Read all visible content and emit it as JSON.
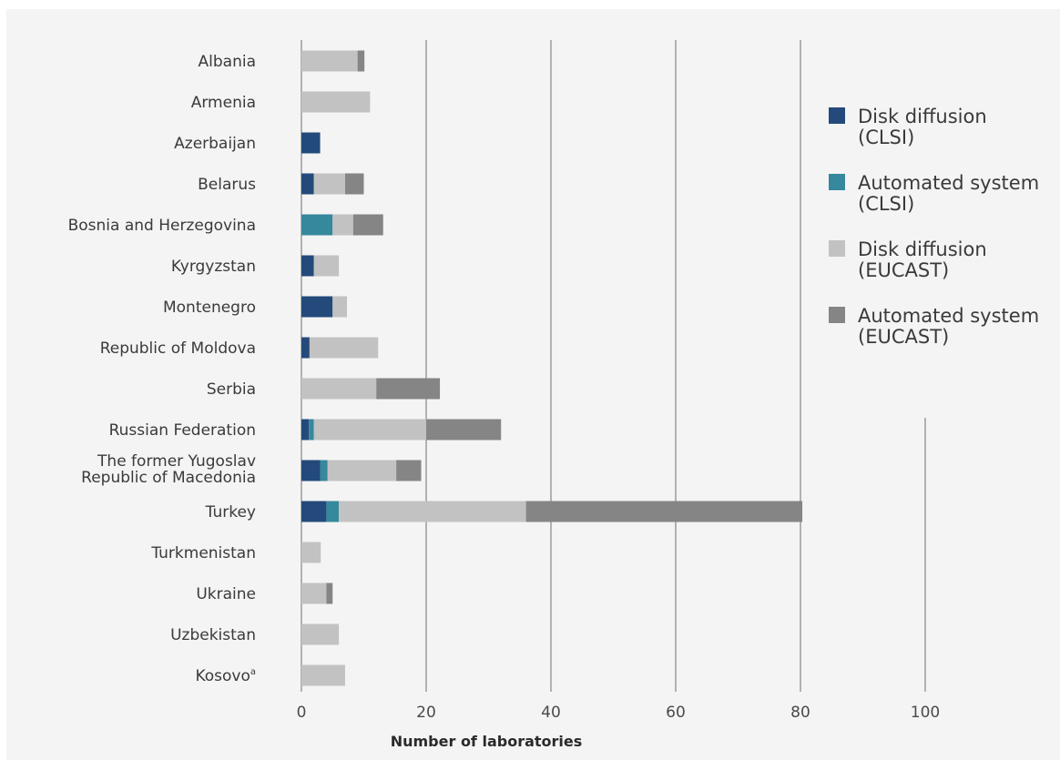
{
  "chart_data": {
    "type": "bar",
    "orientation": "horizontal",
    "stacked": true,
    "categories": [
      [
        "Albania"
      ],
      [
        "Armenia"
      ],
      [
        "Azerbaijan"
      ],
      [
        "Belarus"
      ],
      [
        "Bosnia and Herzegovina"
      ],
      [
        "Kyrgyzstan"
      ],
      [
        "Montenegro"
      ],
      [
        "Republic of Moldova"
      ],
      [
        "Serbia"
      ],
      [
        "Russian Federation"
      ],
      [
        "The former Yugoslav",
        "Republic of Macedonia"
      ],
      [
        "Turkey"
      ],
      [
        "Turkmenistan"
      ],
      [
        "Ukraine"
      ],
      [
        "Uzbekistan"
      ],
      [
        "Kosovo",
        "a"
      ]
    ],
    "series": [
      {
        "name": [
          "Disk diffusion",
          "(CLSI)"
        ],
        "color": "#234a7a",
        "values": [
          0,
          0,
          3,
          2,
          0,
          2,
          5,
          1.3,
          0,
          1.2,
          3,
          4,
          0,
          0,
          0,
          0
        ]
      },
      {
        "name": [
          "Automated system",
          "(CLSI)"
        ],
        "color": "#36889c",
        "values": [
          0,
          0,
          0,
          0,
          5,
          0,
          0,
          0,
          0,
          0.8,
          1.2,
          2,
          0,
          0,
          0,
          0
        ]
      },
      {
        "name": [
          "Disk diffusion",
          "(EUCAST)"
        ],
        "color": "#c2c2c2",
        "values": [
          9,
          11,
          0,
          5,
          3.3,
          4,
          2.3,
          11,
          12,
          18,
          11,
          30,
          3.1,
          4,
          6,
          7
        ]
      },
      {
        "name": [
          "Automated system",
          "(EUCAST)"
        ],
        "color": "#858585",
        "values": [
          1.1,
          0,
          0,
          3,
          4.8,
          0,
          0,
          0,
          10.2,
          12,
          4,
          44.3,
          0,
          1,
          0,
          0
        ]
      }
    ],
    "xlim": [
      0,
      100
    ],
    "xticks": [
      0,
      20,
      40,
      60,
      80,
      100
    ],
    "xlabel": "Number of laboratories",
    "legend_position": "right",
    "grid": "vertical"
  }
}
